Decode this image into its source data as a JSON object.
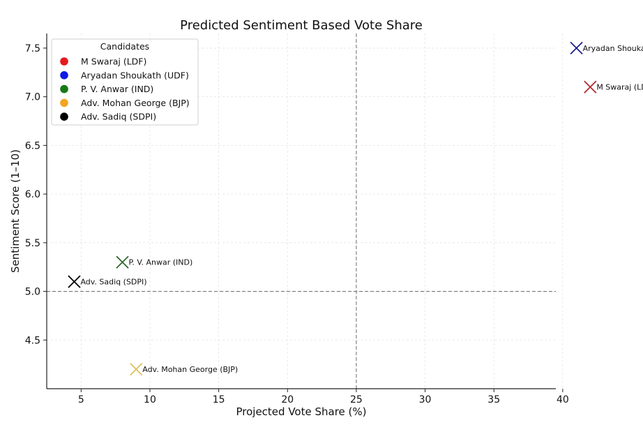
{
  "chart_data": {
    "type": "scatter",
    "title": "Predicted Sentiment Based Vote Share",
    "xlabel": "Projected Vote Share (%)",
    "ylabel": "Sentiment Score (1–10)",
    "xlim": [
      2.5,
      39.5
    ],
    "ylim": [
      4.0,
      7.65
    ],
    "xticks": [
      5,
      10,
      15,
      20,
      25,
      30,
      35,
      40
    ],
    "yticks": [
      4.5,
      5.0,
      5.5,
      6.0,
      6.5,
      7.0,
      7.5
    ],
    "xtick_labels": [
      "5",
      "10",
      "15",
      "20",
      "25",
      "30",
      "35",
      "40"
    ],
    "ytick_labels": [
      "4.5",
      "5.0",
      "5.5",
      "6.0",
      "6.5",
      "7.0",
      "7.5"
    ],
    "grid": true,
    "reference_lines": {
      "x": 25,
      "y": 5.0
    },
    "legend": {
      "title": "Candidates",
      "position": "top-left"
    },
    "series": [
      {
        "name": "M Swaraj (LDF)",
        "color": "#e41a1c",
        "marker_color": "#b03030",
        "x": 42,
        "y": 7.1,
        "label": "M Swaraj (LDF)"
      },
      {
        "name": "Aryadan Shoukath (UDF)",
        "color": "#0f1ae6",
        "marker_color": "#1c1c8c",
        "x": 41,
        "y": 7.5,
        "label": "Aryadan Shoukath (UDF)"
      },
      {
        "name": "P. V. Anwar (IND)",
        "color": "#177a17",
        "marker_color": "#2e6b2e",
        "x": 8,
        "y": 5.3,
        "label": "P. V. Anwar (IND)"
      },
      {
        "name": "Adv. Mohan George (BJP)",
        "color": "#f5a51f",
        "marker_color": "#e0c060",
        "x": 9,
        "y": 4.2,
        "label": "Adv. Mohan George (BJP)"
      },
      {
        "name": "Adv. Sadiq (SDPI)",
        "color": "#000000",
        "marker_color": "#000000",
        "x": 4.5,
        "y": 5.1,
        "label": "Adv. Sadiq (SDPI)"
      }
    ]
  }
}
